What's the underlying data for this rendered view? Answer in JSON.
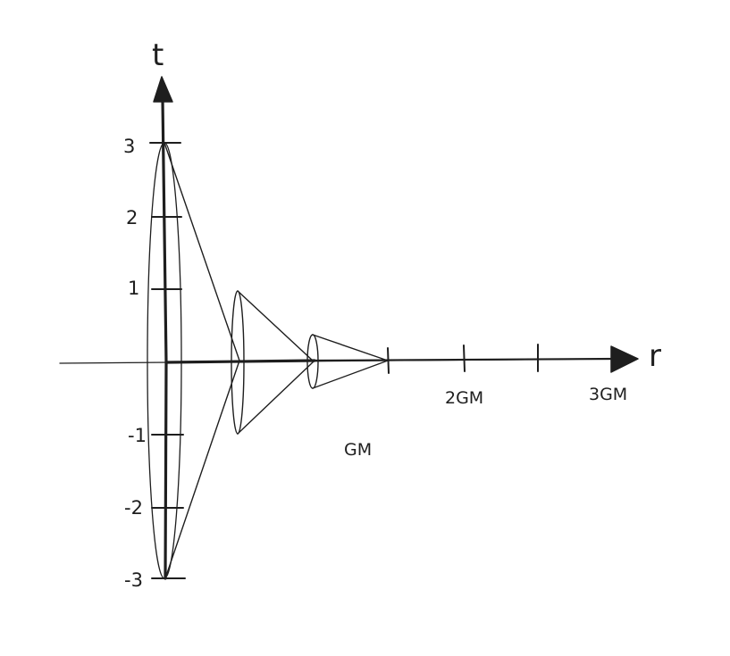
{
  "axes": {
    "t_label": "t",
    "r_label": "r",
    "t_ticks": [
      "3",
      "2",
      "1",
      "-1",
      "-2",
      "-3"
    ],
    "r_ticks": [
      "GM",
      "2GM",
      "3GM"
    ]
  },
  "colors": {
    "ink": "#1e1e1e",
    "background": "#ffffff"
  }
}
